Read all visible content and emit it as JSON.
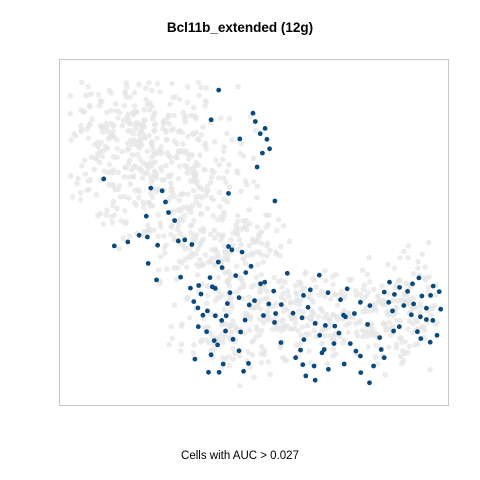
{
  "chart_data": {
    "type": "scatter",
    "title": "Bcl11b_extended (12g)",
    "xlabel": "Cells with AUC > 0.027",
    "ylabel": "",
    "axes_visible": false,
    "grid": false,
    "colors": {
      "background_cells": "#e6e6e6",
      "highlighted_cells": "#0b4a7e",
      "frame": "#c8c8c8"
    },
    "xlim": [
      0,
      100
    ],
    "ylim": [
      0,
      100
    ],
    "series": [
      {
        "role": "cells_above_threshold",
        "points": [
          [
            40.5,
            93.3
          ],
          [
            38.5,
            84.3
          ],
          [
            49.6,
            86.3
          ],
          [
            50.2,
            83.8
          ],
          [
            52.8,
            81.7
          ],
          [
            46.1,
            78.5
          ],
          [
            51.5,
            80.1
          ],
          [
            53.3,
            78.4
          ],
          [
            52.1,
            74.2
          ],
          [
            54.0,
            75.5
          ],
          [
            50.7,
            70.0
          ],
          [
            10.0,
            66.4
          ],
          [
            22.5,
            63.6
          ],
          [
            25.5,
            62.8
          ],
          [
            43.1,
            62.0
          ],
          [
            26.4,
            59.4
          ],
          [
            55.4,
            59.7
          ],
          [
            28.8,
            53.8
          ],
          [
            19.4,
            49.3
          ],
          [
            21.6,
            48.8
          ],
          [
            16.4,
            47.3
          ],
          [
            31.5,
            47.9
          ],
          [
            24.3,
            46.3
          ],
          [
            12.8,
            46.1
          ],
          [
            33.4,
            46.5
          ],
          [
            21.8,
            40.8
          ],
          [
            40.4,
            41.2
          ],
          [
            46.7,
            44.2
          ],
          [
            49.1,
            39.9
          ],
          [
            45.0,
            37.1
          ],
          [
            47.7,
            38.0
          ],
          [
            24.0,
            35.8
          ],
          [
            30.4,
            36.6
          ],
          [
            33.0,
            33.3
          ],
          [
            35.0,
            27.3
          ],
          [
            39.6,
            33.2
          ],
          [
            43.5,
            31.9
          ],
          [
            48.6,
            28.2
          ],
          [
            52.7,
            35.1
          ],
          [
            50.0,
            29.5
          ],
          [
            53.8,
            28.5
          ],
          [
            37.5,
            26.4
          ],
          [
            39.6,
            24.9
          ],
          [
            36.3,
            25.1
          ],
          [
            41.3,
            23.5
          ],
          [
            42.5,
            24.9
          ],
          [
            45.9,
            30.4
          ],
          [
            55.6,
            25.6
          ],
          [
            57.1,
            28.3
          ],
          [
            60.2,
            25.7
          ],
          [
            62.6,
            24.3
          ],
          [
            67.2,
            37.2
          ],
          [
            64.8,
            32.8
          ],
          [
            72.8,
            29.8
          ],
          [
            74.6,
            33.1
          ],
          [
            69.5,
            31.9
          ],
          [
            73.6,
            25.1
          ],
          [
            63.1,
            17.7
          ],
          [
            66.1,
            22.6
          ],
          [
            67.3,
            19.0
          ],
          [
            68.5,
            14.7
          ],
          [
            38.5,
            13.1
          ],
          [
            40.2,
            16.1
          ],
          [
            41.7,
            10.3
          ],
          [
            44.3,
            17.8
          ],
          [
            39.3,
            17.4
          ],
          [
            45.9,
            14.3
          ],
          [
            48.4,
            10.5
          ],
          [
            47.1,
            8.1
          ],
          [
            40.6,
            7.8
          ],
          [
            37.8,
            7.8
          ],
          [
            34.2,
            11.8
          ],
          [
            37.3,
            20.1
          ],
          [
            42.3,
            20.3
          ],
          [
            46.3,
            20.0
          ],
          [
            62.2,
            14.5
          ],
          [
            60.9,
            12.2
          ],
          [
            62.8,
            10.1
          ],
          [
            65.8,
            9.7
          ],
          [
            63.6,
            6.7
          ],
          [
            66.1,
            5.4
          ],
          [
            69.6,
            8.7
          ],
          [
            67.9,
            13.7
          ],
          [
            73.8,
            10.3
          ],
          [
            76.9,
            14.2
          ],
          [
            75.4,
            16.5
          ],
          [
            78.1,
            12.7
          ],
          [
            80.5,
            4.6
          ],
          [
            78.2,
            7.7
          ],
          [
            81.6,
            9.7
          ],
          [
            83.6,
            14.7
          ],
          [
            84.4,
            12.2
          ],
          [
            86.9,
            20.3
          ],
          [
            86.6,
            26.4
          ],
          [
            85.6,
            29.0
          ],
          [
            84.4,
            32.1
          ],
          [
            87.1,
            31.4
          ],
          [
            85.8,
            35.1
          ],
          [
            88.5,
            33.5
          ],
          [
            90.6,
            32.3
          ],
          [
            91.9,
            34.6
          ],
          [
            93.6,
            36.4
          ],
          [
            94.4,
            30.9
          ],
          [
            96.7,
            31.1
          ],
          [
            97.4,
            33.9
          ],
          [
            99.0,
            32.2
          ],
          [
            95.6,
            27.2
          ],
          [
            94.0,
            24.6
          ],
          [
            91.6,
            25.2
          ],
          [
            88.4,
            21.6
          ],
          [
            98.4,
            19.0
          ],
          [
            93.2,
            20.1
          ],
          [
            95.6,
            23.8
          ],
          [
            76.5,
            25.6
          ],
          [
            78.1,
            29.0
          ],
          [
            80.6,
            28.0
          ],
          [
            71.1,
            16.5
          ],
          [
            96.6,
            16.9
          ],
          [
            99.4,
            26.9
          ],
          [
            29.8,
            47.6
          ],
          [
            38.2,
            36.5
          ],
          [
            38.8,
            33.7
          ],
          [
            44.0,
            44.9
          ],
          [
            51.6,
            34.6
          ],
          [
            35.8,
            31.5
          ],
          [
            47.5,
            23.6
          ],
          [
            64.2,
            27.5
          ],
          [
            72.4,
            19.7
          ],
          [
            83.2,
            18.3
          ],
          [
            43.1,
            45.9
          ],
          [
            41.4,
            39.5
          ],
          [
            27.2,
            56.2
          ],
          [
            33.9,
            29.2
          ],
          [
            35.2,
            34.1
          ],
          [
            42.8,
            28.6
          ],
          [
            58.7,
            37.8
          ],
          [
            55.3,
            22.9
          ],
          [
            57.0,
            16.8
          ],
          [
            71.3,
            21.8
          ],
          [
            74.1,
            24.6
          ],
          [
            80.0,
            22.3
          ],
          [
            89.6,
            28.0
          ],
          [
            92.2,
            28.5
          ],
          [
            97.3,
            23.5
          ],
          [
            55.1,
            32.4
          ],
          [
            52.4,
            25.0
          ],
          [
            68.8,
            22.0
          ],
          [
            35.1,
            21.6
          ],
          [
            21.3,
            55.1
          ],
          [
            63.0,
            31.1
          ],
          [
            94.1,
            18.0
          ]
        ]
      }
    ]
  }
}
